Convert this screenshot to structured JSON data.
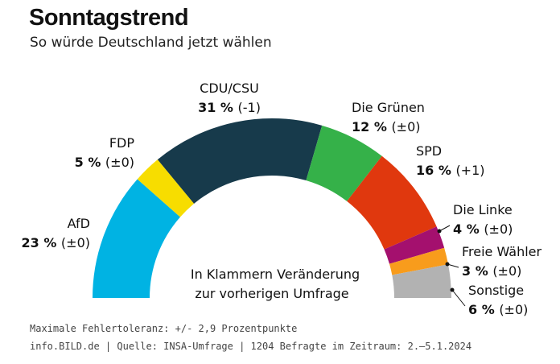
{
  "title": "Sonntagstrend",
  "subtitle": "So würde Deutschland jetzt wählen",
  "footer": {
    "line1": "Maximale Fehlertoleranz: +/- 2,9 Prozentpunkte",
    "line2": "info.BILD.de | Quelle: INSA-Umfrage | 1204 Befragte im Zeitraum: 2.–5.1.2024"
  },
  "chart_data": {
    "type": "pie",
    "variant": "semicircle",
    "center_note": [
      "In Klammern Veränderung",
      "zur vorherigen Umfrage"
    ],
    "series": [
      {
        "name": "AfD",
        "value": 23,
        "value_label": "23 %",
        "change": "(±0)",
        "color": "#00b3e3"
      },
      {
        "name": "FDP",
        "value": 5,
        "value_label": "5 %",
        "change": "(±0)",
        "color": "#f7dd00"
      },
      {
        "name": "CDU/CSU",
        "value": 31,
        "value_label": "31 %",
        "change": "(-1)",
        "color": "#173a4b"
      },
      {
        "name": "Die Grünen",
        "value": 12,
        "value_label": "12 %",
        "change": "(±0)",
        "color": "#35b149"
      },
      {
        "name": "SPD",
        "value": 16,
        "value_label": "16 %",
        "change": "(+1)",
        "color": "#e0380e"
      },
      {
        "name": "Die Linke",
        "value": 4,
        "value_label": "4 %",
        "change": "(±0)",
        "color": "#a4106e"
      },
      {
        "name": "Freie Wähler",
        "value": 3,
        "value_label": "3 %",
        "change": "(±0)",
        "color": "#f89c1c"
      },
      {
        "name": "Sonstige",
        "value": 6,
        "value_label": "6 %",
        "change": "(±0)",
        "color": "#b2b2b2"
      }
    ]
  }
}
